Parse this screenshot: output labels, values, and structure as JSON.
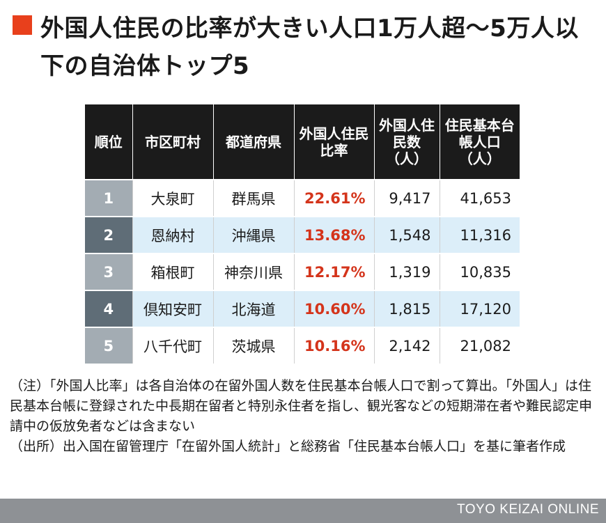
{
  "title": "外国人住民の比率が大きい人口1万人超〜5万人以下の自治体トップ5",
  "colors": {
    "accent": "#e8401c",
    "header_bg": "#1b1b1b",
    "ratio_text": "#d4341b",
    "rank_light": "#a3acb3",
    "rank_dark": "#5f6d77",
    "row_alt": "#dceef9",
    "footer_bg": "#8e9195"
  },
  "chart_data": {
    "type": "table",
    "columns": [
      "順位",
      "市区町村",
      "都道府県",
      "外国人住民比率",
      "外国人住民数（人）",
      "住民基本台帳人口（人）"
    ],
    "rows": [
      {
        "rank": "1",
        "name": "大泉町",
        "pref": "群馬県",
        "ratio": "22.61%",
        "foreign": "9,417",
        "population": "41,653"
      },
      {
        "rank": "2",
        "name": "恩納村",
        "pref": "沖縄県",
        "ratio": "13.68%",
        "foreign": "1,548",
        "population": "11,316"
      },
      {
        "rank": "3",
        "name": "箱根町",
        "pref": "神奈川県",
        "ratio": "12.17%",
        "foreign": "1,319",
        "population": "10,835"
      },
      {
        "rank": "4",
        "name": "倶知安町",
        "pref": "北海道",
        "ratio": "10.60%",
        "foreign": "1,815",
        "population": "17,120"
      },
      {
        "rank": "5",
        "name": "八千代町",
        "pref": "茨城県",
        "ratio": "10.16%",
        "foreign": "2,142",
        "population": "21,082"
      }
    ]
  },
  "note": "（注）「外国人比率」は各自治体の在留外国人数を住民基本台帳人口で割って算出。「外国人」は住民基本台帳に登録された中長期在留者と特別永住者を指し、観光客などの短期滞在者や難民認定申請中の仮放免者などは含まない\n（出所）出入国在留管理庁「在留外国人統計」と総務省「住民基本台帳人口」を基に筆者作成",
  "footer": "TOYO KEIZAI ONLINE"
}
